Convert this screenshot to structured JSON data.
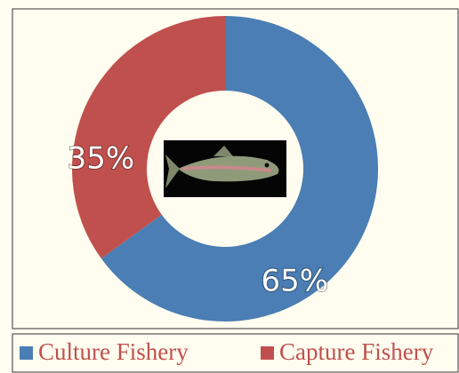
{
  "chart_data": {
    "type": "donut",
    "categories": [
      "Culture Fishery",
      "Capture Fishery"
    ],
    "values": [
      65,
      35
    ],
    "value_labels": [
      "65%",
      "35%"
    ],
    "colors": [
      "#4a7eb4",
      "#c0504d"
    ],
    "legend": "bottom"
  }
}
